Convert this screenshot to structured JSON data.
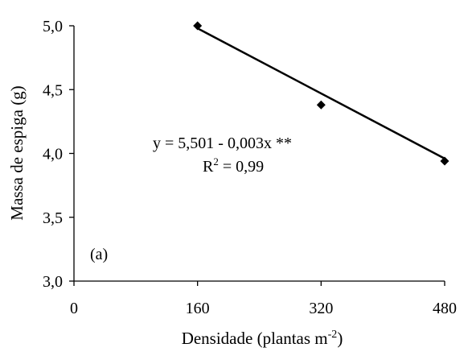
{
  "chart_data": {
    "type": "scatter",
    "title": "",
    "xlabel": "Densidade (plantas m",
    "xlabel_sup": "-2",
    "xlabel_close": ")",
    "ylabel": "Massa de espiga (g)",
    "xlim": [
      0,
      480
    ],
    "ylim": [
      3.0,
      5.0
    ],
    "x_ticks": [
      0,
      160,
      320,
      480
    ],
    "x_tick_labels": [
      "0",
      "160",
      "320",
      "480"
    ],
    "y_ticks": [
      3.0,
      3.5,
      4.0,
      4.5,
      5.0
    ],
    "y_tick_labels": [
      "3,0",
      "3,5",
      "4,0",
      "4,5",
      "5,0"
    ],
    "grid": false,
    "legend": "none",
    "series": [
      {
        "marker": "diamond",
        "x": [
          160,
          320,
          480
        ],
        "y": [
          5.0,
          4.38,
          3.94
        ]
      }
    ],
    "fit_line": {
      "x": [
        160,
        480
      ],
      "y": [
        4.98,
        3.96
      ]
    },
    "annotations": {
      "equation": "y =  5,501 - 0,003x **",
      "r2_prefix": "R",
      "r2_sup": "2",
      "r2_suffix": " = 0,99",
      "panel": "(a)"
    },
    "colors": {
      "marker": "#000000",
      "line": "#000000",
      "axis": "#000000"
    }
  }
}
